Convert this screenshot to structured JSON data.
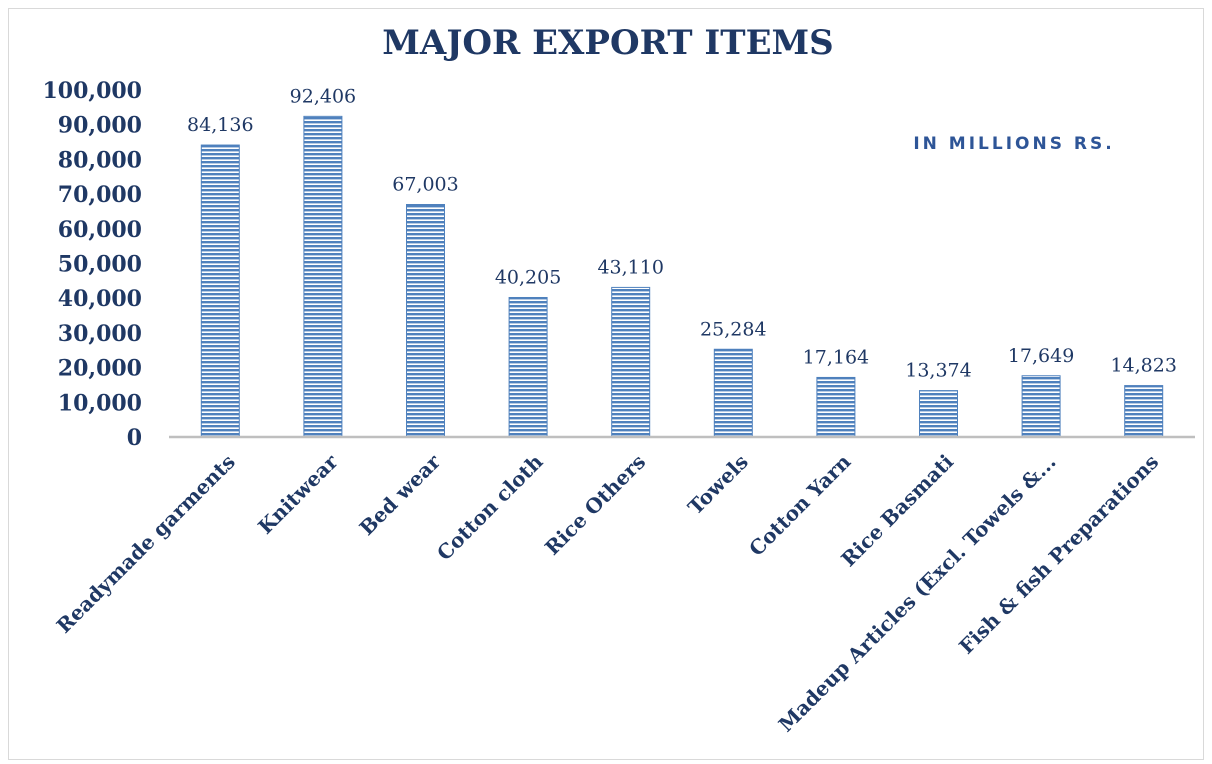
{
  "chart_data": {
    "type": "bar",
    "title": "MAJOR EXPORT ITEMS",
    "unit_note": "IN MILLIONS RS.",
    "categories": [
      "Readymade garments",
      "Knitwear",
      "Bed wear",
      "Cotton cloth",
      "Rice Others",
      "Towels",
      "Cotton Yarn",
      "Rice Basmati",
      "Madeup Articles (Excl. Towels &...",
      "Fish & fish Preparations"
    ],
    "values": [
      84136,
      92406,
      67003,
      40205,
      43110,
      25284,
      17164,
      13374,
      17649,
      14823
    ],
    "data_labels": [
      "84,136",
      "92,406",
      "67,003",
      "40,205",
      "43,110",
      "25,284",
      "17,164",
      "13,374",
      "17,649",
      "14,823"
    ],
    "y_ticks": [
      "0",
      "10,000",
      "20,000",
      "30,000",
      "40,000",
      "50,000",
      "60,000",
      "70,000",
      "80,000",
      "90,000",
      "100,000"
    ],
    "ylim": [
      0,
      100000
    ],
    "grid": false,
    "legend": "none",
    "colors": {
      "bar_fill": "#4f81bd",
      "bar_stripe": "#ffffff",
      "text": "#1f3864",
      "unit_text": "#2e5597",
      "axis": "#bfbfbf"
    }
  }
}
